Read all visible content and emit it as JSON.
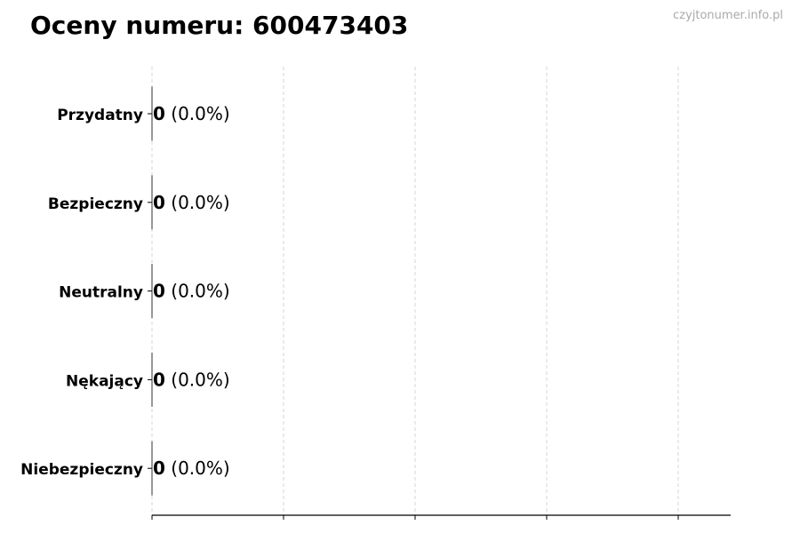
{
  "watermark": "czyjtonumer.info.pl",
  "chart_data": {
    "type": "bar",
    "orientation": "horizontal",
    "title": "Oceny numeru: 600473403",
    "categories": [
      "Przydatny",
      "Bezpieczny",
      "Neutralny",
      "Nękający",
      "Niebezpieczny"
    ],
    "values": [
      0,
      0,
      0,
      0,
      0
    ],
    "percentages": [
      0.0,
      0.0,
      0.0,
      0.0,
      0.0
    ],
    "xlabel": "",
    "ylabel": "",
    "xticks_count": 5,
    "xtick_labels_shown": false,
    "grid": "x, dashed",
    "legend": "none",
    "colors": {
      "text": "#000000",
      "grid": "#cccccc",
      "watermark": "#aaaaaa"
    }
  }
}
